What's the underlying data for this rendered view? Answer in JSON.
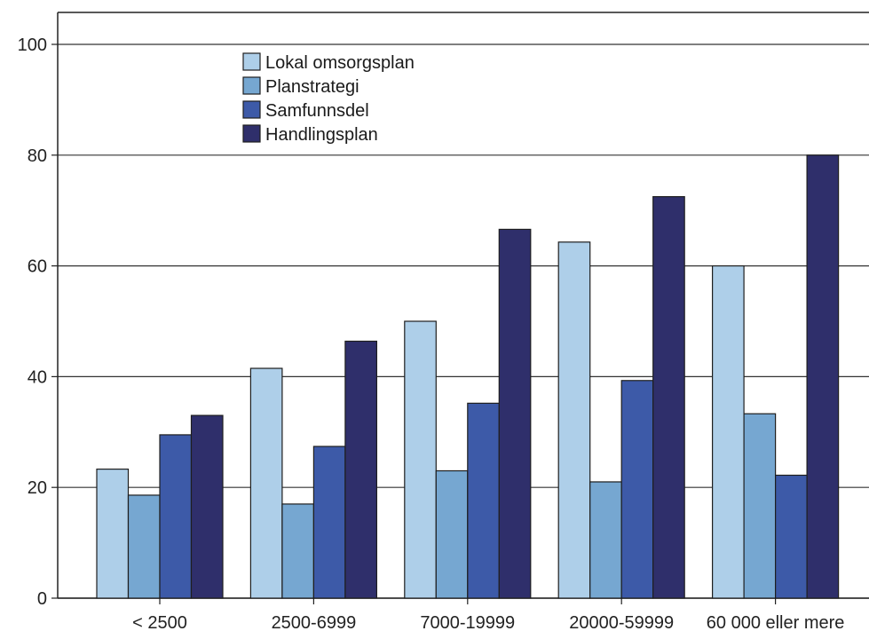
{
  "chart_data": {
    "type": "bar",
    "categories": [
      "< 2500",
      "2500-6999",
      "7000-19999",
      "20000-59999",
      "60 000 eller mere"
    ],
    "series": [
      {
        "name": "Lokal omsorgsplan",
        "color": "#aecfe9",
        "values": [
          23.3,
          41.5,
          50.0,
          64.3,
          60.0
        ]
      },
      {
        "name": "Planstrategi",
        "color": "#76a7d1",
        "values": [
          18.6,
          17.0,
          23.0,
          21.0,
          33.3
        ]
      },
      {
        "name": "Samfunnsdel",
        "color": "#3d5aa8",
        "values": [
          29.5,
          27.4,
          35.2,
          39.3,
          22.2
        ]
      },
      {
        "name": "Handlingsplan",
        "color": "#2f2f6b",
        "values": [
          33.0,
          46.4,
          66.6,
          72.5,
          80.0
        ]
      }
    ],
    "yticks": [
      0,
      20,
      40,
      60,
      80,
      100
    ],
    "ylim": [
      0,
      100
    ],
    "title": "",
    "xlabel": "",
    "ylabel": "",
    "grid": "horizontal",
    "legend_position": "top-left"
  }
}
